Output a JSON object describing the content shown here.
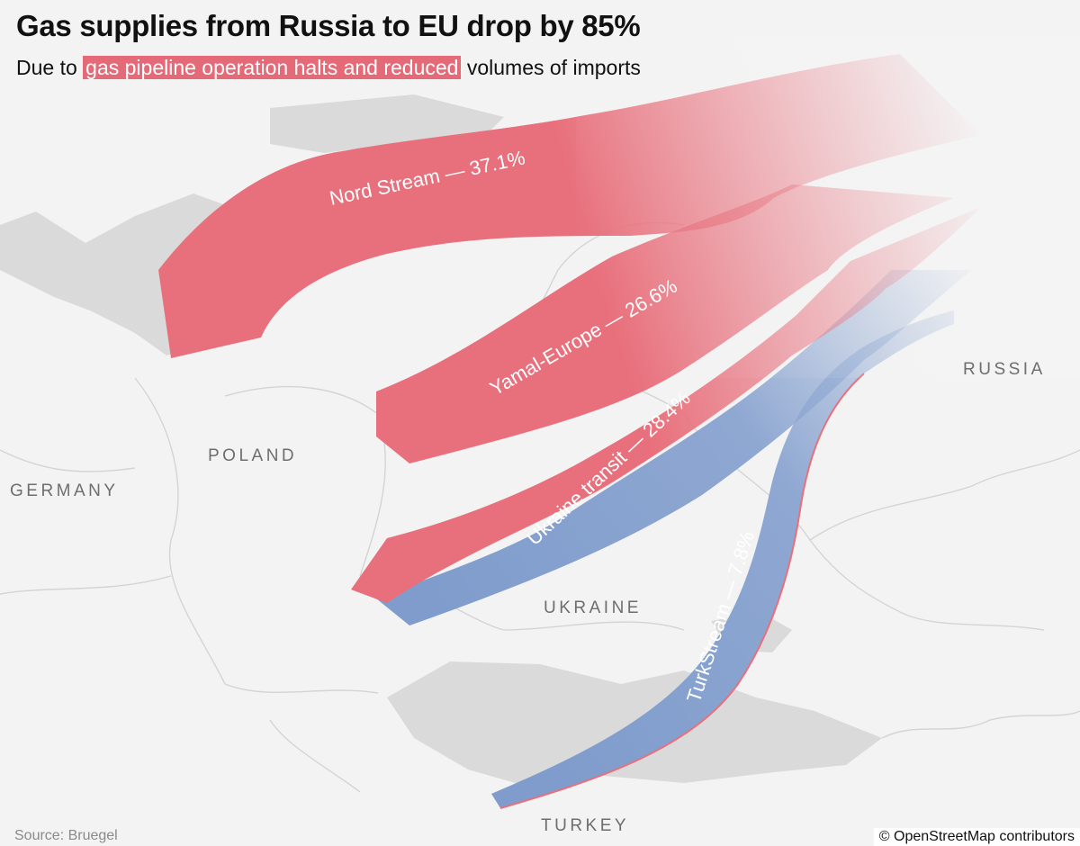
{
  "title": "Gas supplies from Russia to EU drop by 85%",
  "subtitle": {
    "prefix": "Due to ",
    "highlight": "gas pipeline operation halts and reduced",
    "suffix": " volumes of imports"
  },
  "colors": {
    "pipeline_red": "#e8707c",
    "pipeline_blue": "#7f9ccc",
    "highlight": "#e56a78"
  },
  "countries": {
    "russia": "RUSSIA",
    "poland": "POLAND",
    "germany": "GERMANY",
    "ukraine": "UKRAINE",
    "turkey": "TURKEY"
  },
  "pipelines": [
    {
      "name": "Nord Stream",
      "share_pct": 37.1,
      "label": "Nord Stream — 37.1%"
    },
    {
      "name": "Yamal-Europe",
      "share_pct": 26.6,
      "label": "Yamal-Europe — 26.6%"
    },
    {
      "name": "Ukraine transit",
      "share_pct": 28.4,
      "label": "Ukraine transit — 28.4%"
    },
    {
      "name": "TurkStream",
      "share_pct": 7.8,
      "label": "TurkStream — 7.8%"
    }
  ],
  "source": "Source: Bruegel",
  "attribution": "© OpenStreetMap contributors"
}
